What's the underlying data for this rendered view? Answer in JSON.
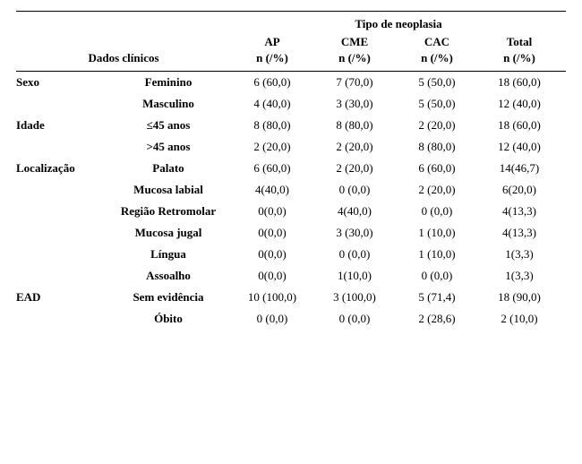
{
  "headers": {
    "super": "Tipo de neoplasia",
    "dados": "Dados clínicos",
    "cols": [
      "AP",
      "CME",
      "CAC",
      "Total"
    ],
    "sub": [
      "n (/%)",
      "n (/%)",
      "n (/%)",
      "n (/%)"
    ]
  },
  "groups": [
    {
      "label": "Sexo",
      "rows": [
        {
          "label": "Feminino",
          "vals": [
            "6 (60,0)",
            "7 (70,0)",
            "5 (50,0)",
            "18 (60,0)"
          ]
        },
        {
          "label": "Masculino",
          "vals": [
            "4 (40,0)",
            "3 (30,0)",
            "5 (50,0)",
            "12 (40,0)"
          ]
        }
      ]
    },
    {
      "label": "Idade",
      "rows": [
        {
          "label": "≤45 anos",
          "vals": [
            "8 (80,0)",
            "8 (80,0)",
            "2 (20,0)",
            "18 (60,0)"
          ]
        },
        {
          "label": ">45 anos",
          "vals": [
            "2 (20,0)",
            "2 (20,0)",
            "8 (80,0)",
            "12 (40,0)"
          ]
        }
      ]
    },
    {
      "label": "Localização",
      "rows": [
        {
          "label": "Palato",
          "vals": [
            "6 (60,0)",
            "2 (20,0)",
            "6 (60,0)",
            "14(46,7)"
          ]
        },
        {
          "label": "Mucosa labial",
          "vals": [
            "4(40,0)",
            "0 (0,0)",
            "2 (20,0)",
            "6(20,0)"
          ]
        },
        {
          "label": "Região Retromolar",
          "vals": [
            "0(0,0)",
            "4(40,0)",
            "0 (0,0)",
            "4(13,3)"
          ]
        },
        {
          "label": "Mucosa jugal",
          "vals": [
            "0(0,0)",
            "3 (30,0)",
            "1 (10,0)",
            "4(13,3)"
          ]
        },
        {
          "label": "Língua",
          "vals": [
            "0(0,0)",
            "0 (0,0)",
            "1 (10,0)",
            "1(3,3)"
          ]
        },
        {
          "label": "Assoalho",
          "vals": [
            "0(0,0)",
            "1(10,0)",
            "0 (0,0)",
            "1(3,3)"
          ]
        }
      ]
    },
    {
      "label": "EAD",
      "rows": [
        {
          "label": "Sem evidência",
          "vals": [
            "10 (100,0)",
            "3 (100,0)",
            "5 (71,4)",
            "18 (90,0)"
          ]
        },
        {
          "label": "Óbito",
          "vals": [
            "0 (0,0)",
            "0 (0,0)",
            "2 (28,6)",
            "2 (10,0)"
          ]
        }
      ]
    }
  ]
}
